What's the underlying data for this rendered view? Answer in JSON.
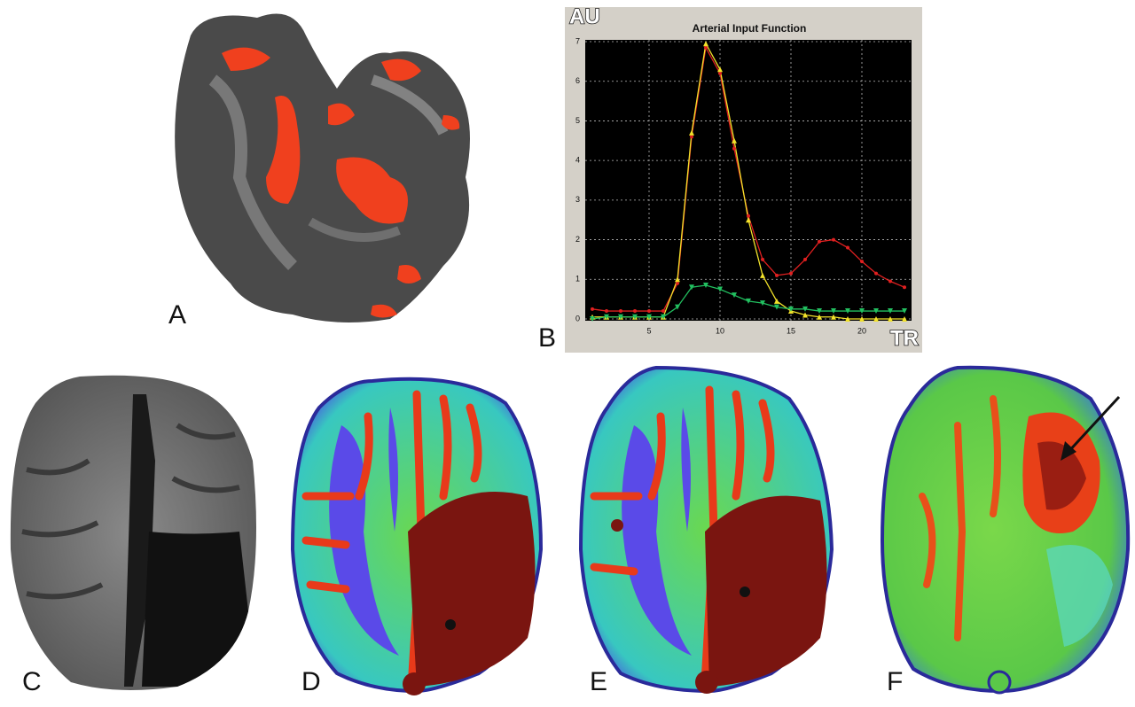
{
  "panel_labels": [
    "A",
    "B",
    "C",
    "D",
    "E",
    "F"
  ],
  "chart_data": {
    "type": "line",
    "title": "Arterial Input Function",
    "y_label": "AU",
    "x_label": "TR",
    "x": [
      1,
      2,
      3,
      4,
      5,
      6,
      7,
      8,
      9,
      10,
      11,
      12,
      13,
      14,
      15,
      16,
      17,
      18,
      19,
      20,
      21,
      22,
      23
    ],
    "series": [
      {
        "color": "#e02020",
        "marker": "circle",
        "values": [
          0.25,
          0.2,
          0.2,
          0.2,
          0.2,
          0.2,
          0.9,
          4.6,
          6.85,
          6.2,
          4.3,
          2.6,
          1.5,
          1.1,
          1.15,
          1.5,
          1.95,
          2.0,
          1.8,
          1.45,
          1.15,
          0.95,
          0.8
        ]
      },
      {
        "color": "#f2e22a",
        "marker": "triangle",
        "values": [
          0.05,
          0.05,
          0.05,
          0.05,
          0.05,
          0.05,
          1.0,
          4.7,
          6.95,
          6.3,
          4.5,
          2.5,
          1.1,
          0.45,
          0.2,
          0.1,
          0.05,
          0.05,
          0,
          0,
          0,
          0,
          0
        ]
      },
      {
        "color": "#22c060",
        "marker": "triangle-down",
        "values": [
          0,
          0.05,
          0.05,
          0.05,
          0.05,
          0.05,
          0.3,
          0.8,
          0.85,
          0.75,
          0.6,
          0.45,
          0.4,
          0.3,
          0.25,
          0.25,
          0.2,
          0.2,
          0.2,
          0.2,
          0.2,
          0.2,
          0.2
        ]
      }
    ],
    "xlim": [
      0.5,
      23.5
    ],
    "ylim": [
      0,
      7
    ],
    "xticks": [
      5,
      10,
      15,
      20
    ],
    "yticks": [
      0,
      1,
      2,
      3,
      4,
      5,
      6,
      7
    ],
    "grid": true
  }
}
